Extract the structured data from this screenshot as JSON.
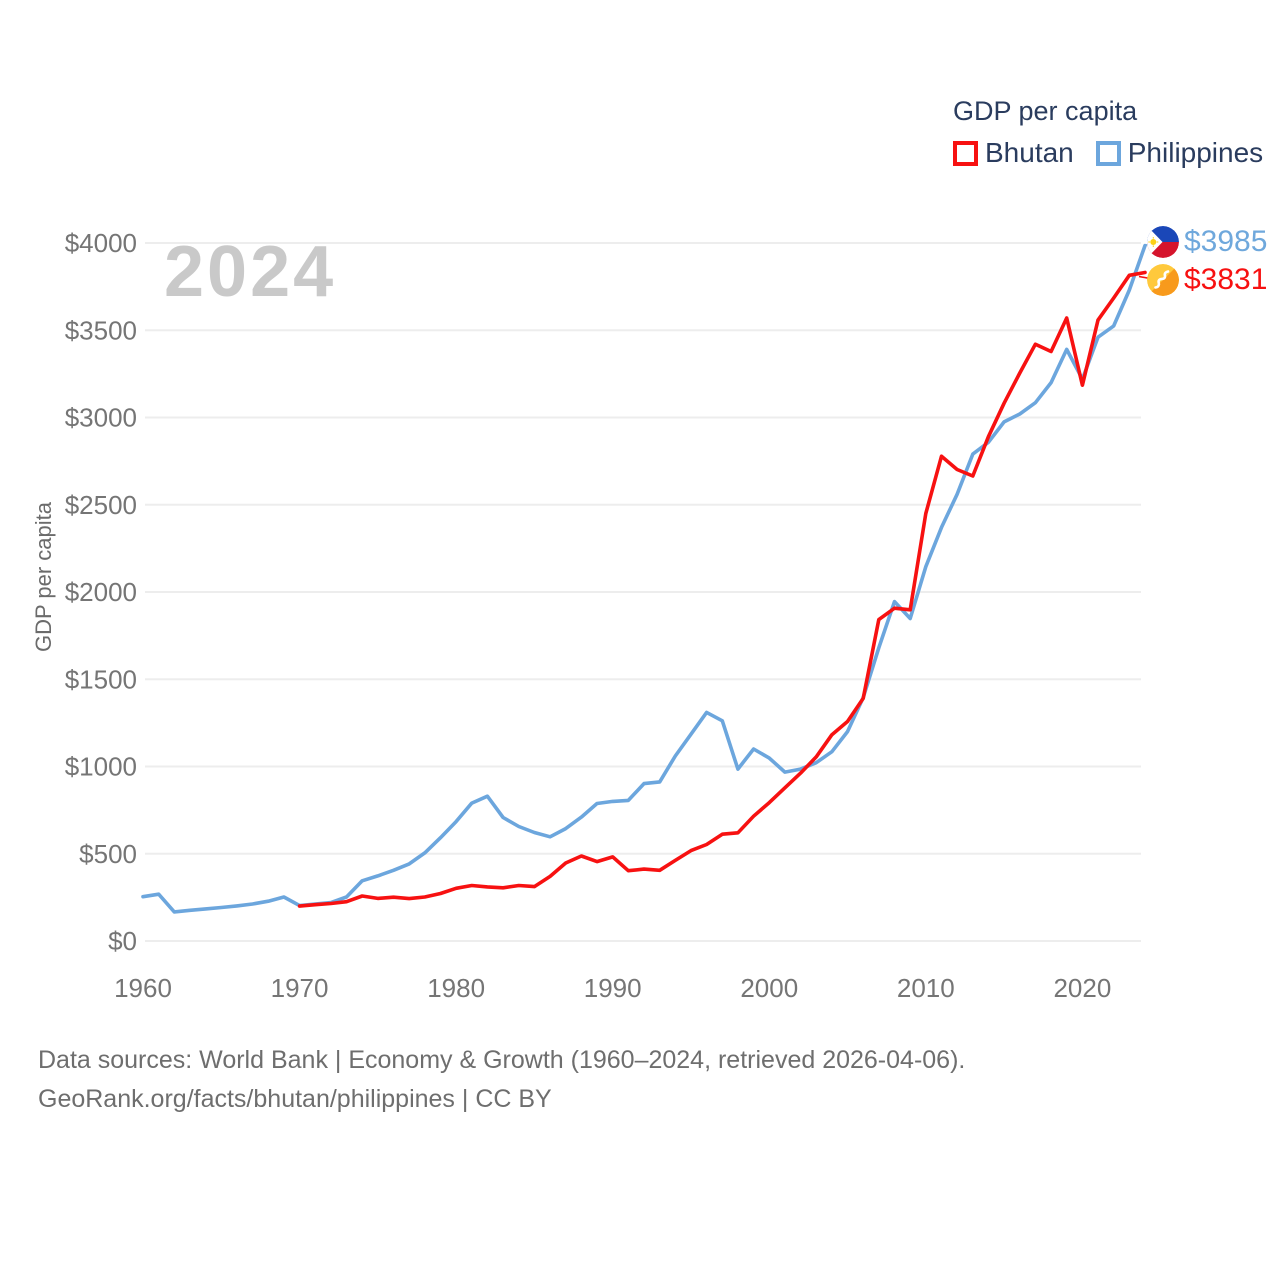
{
  "legend": {
    "title": "GDP per capita",
    "series": [
      {
        "label": "Bhutan",
        "color": "#f71111"
      },
      {
        "label": "Philippines",
        "color": "#6ca6dd"
      }
    ]
  },
  "watermark_year": "2024",
  "y_axis_title": "GDP per capita",
  "end_labels": [
    {
      "country": "Philippines",
      "value": "$3985",
      "color": "#6fa8dc"
    },
    {
      "country": "Bhutan",
      "value": "$3831",
      "color": "#f71111"
    }
  ],
  "footer": {
    "line1": "Data sources: World Bank | Economy & Growth (1960–2024, retrieved 2026-04-06).",
    "line2": "GeoRank.org/facts/bhutan/philippines | CC BY"
  },
  "chart_data": {
    "type": "line",
    "title": "GDP per capita",
    "xlabel": "",
    "ylabel": "GDP per capita",
    "xlim": [
      1960,
      2024
    ],
    "ylim": [
      0,
      4000
    ],
    "grid": "horizontal",
    "legend_position": "top-right",
    "x_ticks": [
      1960,
      1970,
      1980,
      1990,
      2000,
      2010,
      2020
    ],
    "y_ticks": [
      0,
      500,
      1000,
      1500,
      2000,
      2500,
      3000,
      3500,
      4000
    ],
    "y_tick_labels": [
      "$0",
      "$500",
      "$1000",
      "$1500",
      "$2000",
      "$2500",
      "$3000",
      "$3500",
      "$4000"
    ],
    "grid_color": "#ededed",
    "tick_label_color": "#757575",
    "series": [
      {
        "name": "Philippines",
        "color": "#6ca6dd",
        "points": [
          [
            1960,
            254
          ],
          [
            1961,
            268
          ],
          [
            1962,
            167
          ],
          [
            1963,
            176
          ],
          [
            1964,
            184
          ],
          [
            1965,
            192
          ],
          [
            1966,
            201
          ],
          [
            1967,
            212
          ],
          [
            1968,
            228
          ],
          [
            1969,
            252
          ],
          [
            1970,
            203
          ],
          [
            1971,
            212
          ],
          [
            1972,
            220
          ],
          [
            1973,
            252
          ],
          [
            1974,
            345
          ],
          [
            1975,
            373
          ],
          [
            1976,
            405
          ],
          [
            1977,
            442
          ],
          [
            1978,
            505
          ],
          [
            1979,
            592
          ],
          [
            1980,
            684
          ],
          [
            1981,
            790
          ],
          [
            1982,
            830
          ],
          [
            1983,
            708
          ],
          [
            1984,
            656
          ],
          [
            1985,
            622
          ],
          [
            1986,
            597
          ],
          [
            1987,
            644
          ],
          [
            1988,
            710
          ],
          [
            1989,
            788
          ],
          [
            1990,
            800
          ],
          [
            1991,
            806
          ],
          [
            1992,
            902
          ],
          [
            1993,
            912
          ],
          [
            1994,
            1060
          ],
          [
            1995,
            1185
          ],
          [
            1996,
            1310
          ],
          [
            1997,
            1262
          ],
          [
            1998,
            985
          ],
          [
            1999,
            1100
          ],
          [
            2000,
            1048
          ],
          [
            2001,
            968
          ],
          [
            2002,
            985
          ],
          [
            2003,
            1022
          ],
          [
            2004,
            1085
          ],
          [
            2005,
            1200
          ],
          [
            2006,
            1395
          ],
          [
            2007,
            1680
          ],
          [
            2008,
            1945
          ],
          [
            2009,
            1848
          ],
          [
            2010,
            2145
          ],
          [
            2011,
            2370
          ],
          [
            2012,
            2560
          ],
          [
            2013,
            2790
          ],
          [
            2014,
            2858
          ],
          [
            2015,
            2975
          ],
          [
            2016,
            3020
          ],
          [
            2017,
            3085
          ],
          [
            2018,
            3200
          ],
          [
            2019,
            3390
          ],
          [
            2020,
            3220
          ],
          [
            2021,
            3460
          ],
          [
            2022,
            3525
          ],
          [
            2023,
            3730
          ],
          [
            2024,
            3985
          ]
        ]
      },
      {
        "name": "Bhutan",
        "color": "#f71111",
        "points": [
          [
            1970,
            200
          ],
          [
            1971,
            208
          ],
          [
            1972,
            215
          ],
          [
            1973,
            225
          ],
          [
            1974,
            258
          ],
          [
            1975,
            244
          ],
          [
            1976,
            251
          ],
          [
            1977,
            243
          ],
          [
            1978,
            252
          ],
          [
            1979,
            272
          ],
          [
            1980,
            302
          ],
          [
            1981,
            318
          ],
          [
            1982,
            310
          ],
          [
            1983,
            305
          ],
          [
            1984,
            318
          ],
          [
            1985,
            312
          ],
          [
            1986,
            370
          ],
          [
            1987,
            447
          ],
          [
            1988,
            487
          ],
          [
            1989,
            455
          ],
          [
            1990,
            482
          ],
          [
            1991,
            403
          ],
          [
            1992,
            412
          ],
          [
            1993,
            405
          ],
          [
            1994,
            462
          ],
          [
            1995,
            518
          ],
          [
            1996,
            553
          ],
          [
            1997,
            612
          ],
          [
            1998,
            620
          ],
          [
            1999,
            715
          ],
          [
            2000,
            793
          ],
          [
            2001,
            878
          ],
          [
            2002,
            962
          ],
          [
            2003,
            1055
          ],
          [
            2004,
            1182
          ],
          [
            2005,
            1258
          ],
          [
            2006,
            1390
          ],
          [
            2007,
            1842
          ],
          [
            2008,
            1907
          ],
          [
            2009,
            1898
          ],
          [
            2010,
            2450
          ],
          [
            2011,
            2778
          ],
          [
            2012,
            2702
          ],
          [
            2013,
            2665
          ],
          [
            2014,
            2890
          ],
          [
            2015,
            3082
          ],
          [
            2016,
            3255
          ],
          [
            2017,
            3420
          ],
          [
            2018,
            3378
          ],
          [
            2019,
            3570
          ],
          [
            2020,
            3185
          ],
          [
            2021,
            3558
          ],
          [
            2022,
            3685
          ],
          [
            2023,
            3815
          ],
          [
            2024,
            3831
          ]
        ]
      }
    ]
  }
}
